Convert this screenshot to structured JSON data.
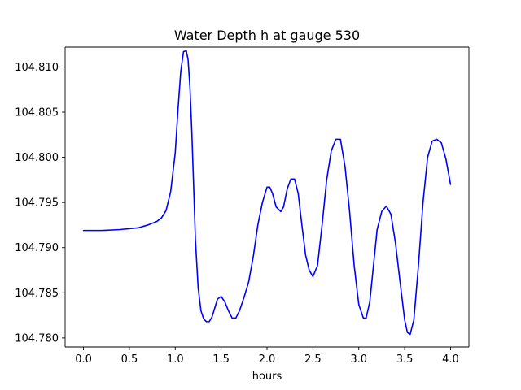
{
  "chart_data": {
    "type": "line",
    "title": "Water Depth h at gauge 530",
    "xlabel": "hours",
    "ylabel": "",
    "xlim": [
      -0.2,
      4.2
    ],
    "ylim": [
      104.779,
      104.8122
    ],
    "grid": false,
    "x_ticks": [
      "0.0",
      "0.5",
      "1.0",
      "1.5",
      "2.0",
      "2.5",
      "3.0",
      "3.5",
      "4.0"
    ],
    "y_ticks": [
      "104.780",
      "104.785",
      "104.790",
      "104.795",
      "104.800",
      "104.805",
      "104.810"
    ],
    "series": [
      {
        "color": "#0000ff",
        "x": [
          0.0,
          0.2,
          0.4,
          0.6,
          0.7,
          0.8,
          0.85,
          0.9,
          0.95,
          1.0,
          1.03,
          1.06,
          1.09,
          1.12,
          1.14,
          1.16,
          1.18,
          1.2,
          1.22,
          1.25,
          1.28,
          1.31,
          1.34,
          1.37,
          1.4,
          1.43,
          1.46,
          1.5,
          1.54,
          1.58,
          1.62,
          1.66,
          1.7,
          1.75,
          1.8,
          1.85,
          1.9,
          1.95,
          2.0,
          2.03,
          2.06,
          2.1,
          2.15,
          2.18,
          2.22,
          2.26,
          2.3,
          2.34,
          2.38,
          2.42,
          2.46,
          2.5,
          2.55,
          2.6,
          2.65,
          2.7,
          2.75,
          2.8,
          2.85,
          2.9,
          2.95,
          3.0,
          3.05,
          3.08,
          3.12,
          3.16,
          3.2,
          3.25,
          3.3,
          3.35,
          3.4,
          3.45,
          3.5,
          3.53,
          3.56,
          3.6,
          3.65,
          3.7,
          3.75,
          3.8,
          3.85,
          3.9,
          3.95,
          4.0
        ],
        "y": [
          104.7919,
          104.7919,
          104.792,
          104.7922,
          104.7925,
          104.7929,
          104.7933,
          104.7941,
          104.7962,
          104.8005,
          104.8053,
          104.8095,
          104.8117,
          104.8118,
          104.8108,
          104.8078,
          104.803,
          104.797,
          104.7908,
          104.7855,
          104.783,
          104.7821,
          104.7818,
          104.7818,
          104.7823,
          104.7833,
          104.7843,
          104.7846,
          104.784,
          104.783,
          104.7822,
          104.7822,
          104.783,
          104.7845,
          104.7862,
          104.789,
          104.7925,
          104.795,
          104.7967,
          104.7967,
          104.796,
          104.7945,
          104.794,
          104.7945,
          104.7965,
          104.7976,
          104.7976,
          104.796,
          104.7925,
          104.7892,
          104.7875,
          104.7868,
          104.788,
          104.7925,
          104.7975,
          104.8007,
          104.802,
          104.802,
          104.799,
          104.794,
          104.788,
          104.7837,
          104.7822,
          104.7822,
          104.784,
          104.788,
          104.792,
          104.794,
          104.7946,
          104.7937,
          104.7905,
          104.7862,
          104.782,
          104.7806,
          104.7804,
          104.782,
          104.788,
          104.795,
          104.8,
          104.8018,
          104.802,
          104.8016,
          104.7998,
          104.797
        ]
      }
    ]
  }
}
